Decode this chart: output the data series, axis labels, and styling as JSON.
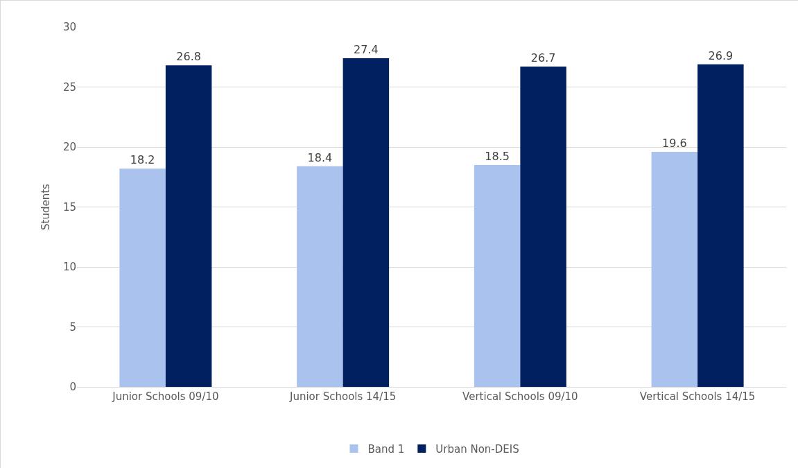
{
  "chart_data": {
    "type": "bar",
    "ylabel": "Students",
    "categories": [
      "Junior Schools 09/10",
      "Junior Schools 14/15",
      "Vertical Schools 09/10",
      "Vertical Schools 14/15"
    ],
    "series": [
      {
        "name": "Band 1",
        "color": "#a9c2ee",
        "values": [
          18.2,
          18.4,
          18.5,
          19.6
        ]
      },
      {
        "name": "Urban Non-DEIS",
        "color": "#002060",
        "values": [
          26.8,
          27.4,
          26.7,
          26.9
        ]
      }
    ],
    "ylim": [
      0,
      30
    ],
    "yticks": [
      0,
      5,
      10,
      15,
      20,
      25,
      30
    ],
    "grid": "y",
    "legend": "bottom",
    "data_labels": true
  }
}
